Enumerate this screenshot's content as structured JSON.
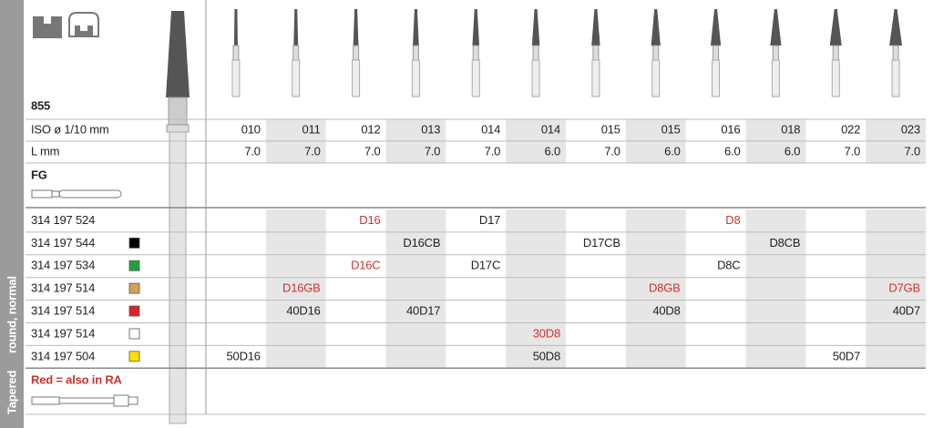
{
  "side_labels": {
    "shape": "Tapered",
    "type": "round, normal"
  },
  "model": "855",
  "iso": {
    "label": "ISO ø 1/10 mm",
    "values": [
      "010",
      "011",
      "012",
      "013",
      "014",
      "014",
      "015",
      "015",
      "016",
      "018",
      "022",
      "023"
    ]
  },
  "length": {
    "label": "L mm",
    "values": [
      "7.0",
      "7.0",
      "7.0",
      "7.0",
      "7.0",
      "6.0",
      "7.0",
      "6.0",
      "6.0",
      "6.0",
      "7.0",
      "7.0"
    ]
  },
  "shank": "FG",
  "red_color": "#c8332f",
  "products": [
    {
      "code": "314 197 524",
      "cells": [
        null,
        null,
        {
          "text": "D16",
          "red": true
        },
        null,
        "D17",
        null,
        null,
        null,
        {
          "text": "D8",
          "red": true
        },
        null,
        null,
        null
      ]
    },
    {
      "code": "314 197 544",
      "color": "#000000",
      "cells": [
        null,
        null,
        null,
        "D16CB",
        null,
        null,
        "D17CB",
        null,
        null,
        "D8CB",
        null,
        null
      ]
    },
    {
      "code": "314 197 534",
      "color": "#1fa23a",
      "cells": [
        null,
        null,
        {
          "text": "D16C",
          "red": true
        },
        null,
        "D17C",
        null,
        null,
        null,
        "D8C",
        null,
        null,
        null
      ]
    },
    {
      "code": "314 197 514",
      "color": "#d4a15a",
      "cells": [
        null,
        {
          "text": "D16GB",
          "red": true
        },
        null,
        null,
        null,
        null,
        null,
        {
          "text": "D8GB",
          "red": true
        },
        null,
        null,
        null,
        {
          "text": "D7GB",
          "red": true
        }
      ]
    },
    {
      "code": "314 197 514",
      "color": "#e0202a",
      "cells": [
        null,
        "40D16",
        null,
        "40D17",
        null,
        null,
        null,
        "40D8",
        null,
        null,
        null,
        "40D7"
      ]
    },
    {
      "code": "314 197 514",
      "color": "#ffffff",
      "cells": [
        null,
        null,
        null,
        null,
        null,
        {
          "text": "30D8",
          "red": true
        },
        null,
        null,
        null,
        null,
        null,
        null
      ]
    },
    {
      "code": "314 197 504",
      "color": "#ffe000",
      "cells": [
        "50D16",
        null,
        null,
        null,
        null,
        "50D8",
        null,
        null,
        null,
        null,
        "50D7",
        null
      ]
    }
  ],
  "note": "Red = also in RA"
}
